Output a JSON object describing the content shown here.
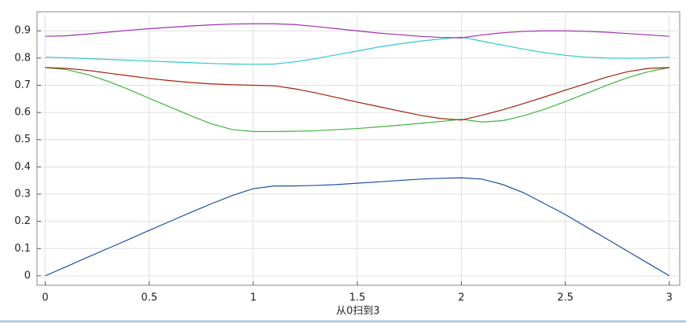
{
  "chart_data": {
    "type": "line",
    "x_label": "从0扫到3",
    "x": [
      0,
      0.1,
      0.2,
      0.3,
      0.4,
      0.5,
      0.6,
      0.7,
      0.8,
      0.9,
      1,
      1.1,
      1.2,
      1.3,
      1.4,
      1.5,
      1.6,
      1.7,
      1.8,
      1.9,
      2,
      2.1,
      2.2,
      2.3,
      2.4,
      2.5,
      2.6,
      2.7,
      2.8,
      2.9,
      3
    ],
    "series": [
      {
        "color": "#1f4e9e",
        "values": [
          0,
          0.033,
          0.067,
          0.1,
          0.133,
          0.167,
          0.2,
          0.233,
          0.265,
          0.295,
          0.32,
          0.33,
          0.33,
          0.332,
          0.335,
          0.34,
          0.345,
          0.35,
          0.355,
          0.358,
          0.36,
          0.355,
          0.335,
          0.305,
          0.265,
          0.225,
          0.18,
          0.135,
          0.09,
          0.045,
          0
        ]
      },
      {
        "color": "#3cb43c",
        "values": [
          0.765,
          0.758,
          0.74,
          0.715,
          0.685,
          0.652,
          0.62,
          0.588,
          0.558,
          0.537,
          0.53,
          0.53,
          0.531,
          0.533,
          0.537,
          0.541,
          0.547,
          0.553,
          0.56,
          0.567,
          0.575,
          0.565,
          0.57,
          0.588,
          0.612,
          0.64,
          0.67,
          0.7,
          0.728,
          0.75,
          0.765
        ]
      },
      {
        "color": "#a0200f",
        "values": [
          0.765,
          0.762,
          0.755,
          0.745,
          0.735,
          0.725,
          0.717,
          0.71,
          0.705,
          0.702,
          0.7,
          0.698,
          0.687,
          0.672,
          0.655,
          0.638,
          0.622,
          0.606,
          0.59,
          0.578,
          0.572,
          0.59,
          0.61,
          0.633,
          0.657,
          0.682,
          0.706,
          0.73,
          0.75,
          0.762,
          0.765
        ]
      },
      {
        "color": "#30c8c8",
        "values": [
          0.803,
          0.801,
          0.798,
          0.795,
          0.792,
          0.789,
          0.786,
          0.783,
          0.78,
          0.778,
          0.777,
          0.778,
          0.786,
          0.798,
          0.812,
          0.826,
          0.84,
          0.852,
          0.862,
          0.87,
          0.877,
          0.862,
          0.847,
          0.833,
          0.82,
          0.81,
          0.803,
          0.8,
          0.799,
          0.8,
          0.803
        ]
      },
      {
        "color": "#a030b0",
        "values": [
          0.88,
          0.882,
          0.888,
          0.895,
          0.902,
          0.908,
          0.913,
          0.918,
          0.922,
          0.925,
          0.926,
          0.926,
          0.923,
          0.916,
          0.908,
          0.9,
          0.892,
          0.886,
          0.88,
          0.876,
          0.874,
          0.885,
          0.893,
          0.898,
          0.9,
          0.9,
          0.898,
          0.895,
          0.89,
          0.885,
          0.88
        ]
      }
    ],
    "xlim": [
      -0.04,
      3.05
    ],
    "ylim": [
      -0.035,
      0.97
    ],
    "xticks": [
      0,
      0.5,
      1,
      1.5,
      2,
      2.5,
      3
    ],
    "yticks": [
      0,
      0.1,
      0.2,
      0.3,
      0.4,
      0.5,
      0.6,
      0.7,
      0.8,
      0.9
    ],
    "grid": true
  }
}
